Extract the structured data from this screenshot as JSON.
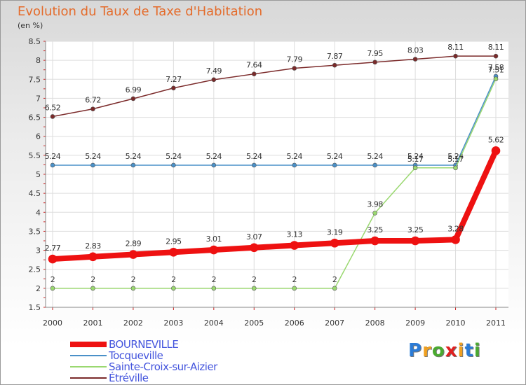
{
  "title": "Evolution du Taux de Taxe d'Habitation",
  "unit": "(en %)",
  "logo": {
    "letters": [
      "P",
      "r",
      "o",
      "x",
      "i",
      "t",
      "i"
    ],
    "colors": [
      "#2b7bd6",
      "#f0a020",
      "#4aaa30",
      "#e02020",
      "#f0a020",
      "#2b7bd6",
      "#4aaa30"
    ]
  },
  "chart_data": {
    "type": "line",
    "title": "Evolution du Taux de Taxe d'Habitation",
    "ylabel": "(en %)",
    "ylim": [
      1.5,
      8.5
    ],
    "yticks": [
      "1.5",
      "2",
      "2.5",
      "3",
      "3.5",
      "4",
      "4.5",
      "5",
      "5.5",
      "6",
      "6.5",
      "7",
      "7.5",
      "8",
      "8.5"
    ],
    "categories": [
      "2000",
      "2001",
      "2002",
      "2003",
      "2004",
      "2005",
      "2006",
      "2007",
      "2008",
      "2009",
      "2010",
      "2011"
    ],
    "series": [
      {
        "name": "Étréville",
        "color": "#7b2a2a",
        "width": 1.5,
        "marker": 3,
        "values": [
          6.52,
          6.72,
          6.99,
          7.27,
          7.49,
          7.64,
          7.79,
          7.87,
          7.95,
          8.03,
          8.11,
          8.11
        ],
        "labels": [
          "6.52",
          "6.72",
          "6.99",
          "7.27",
          "7.49",
          "7.64",
          "7.79",
          "7.87",
          "7.95",
          "8.03",
          "8.11",
          "8.11"
        ]
      },
      {
        "name": "Tocqueville",
        "color": "#4a90c8",
        "width": 1.5,
        "marker": 3,
        "values": [
          5.24,
          5.24,
          5.24,
          5.24,
          5.24,
          5.24,
          5.24,
          5.24,
          5.24,
          5.24,
          5.24,
          7.58
        ],
        "labels": [
          "5.24",
          "5.24",
          "5.24",
          "5.24",
          "5.24",
          "5.24",
          "5.24",
          "5.24",
          "5.24",
          "5.24",
          "5.24",
          "7.58"
        ]
      },
      {
        "name": "Sainte-Croix-sur-Aizier",
        "color": "#9ad870",
        "width": 1.5,
        "marker": 3,
        "values": [
          2,
          2,
          2,
          2,
          2,
          2,
          2,
          2,
          3.98,
          5.17,
          5.17,
          7.51
        ],
        "labels": [
          "2",
          "2",
          "2",
          "2",
          "2",
          "2",
          "2",
          "2",
          "3.98",
          "5.17",
          "5.17",
          "7.51"
        ]
      },
      {
        "name": "BOURNEVILLE",
        "color": "#ee1111",
        "width": 8,
        "marker": 6,
        "values": [
          2.77,
          2.83,
          2.89,
          2.95,
          3.01,
          3.07,
          3.13,
          3.19,
          3.25,
          3.25,
          3.28,
          5.62
        ],
        "labels": [
          "2.77",
          "2.83",
          "2.89",
          "2.95",
          "3.01",
          "3.07",
          "3.13",
          "3.19",
          "3.25",
          "3.25",
          "3.28",
          "5.62"
        ]
      }
    ],
    "legend": [
      {
        "name": "BOURNEVILLE",
        "color": "#ee1111",
        "width": 8
      },
      {
        "name": "Tocqueville",
        "color": "#4a90c8",
        "width": 2
      },
      {
        "name": "Sainte-Croix-sur-Aizier",
        "color": "#9ad870",
        "width": 2
      },
      {
        "name": "Étréville",
        "color": "#7b2a2a",
        "width": 2
      }
    ]
  }
}
